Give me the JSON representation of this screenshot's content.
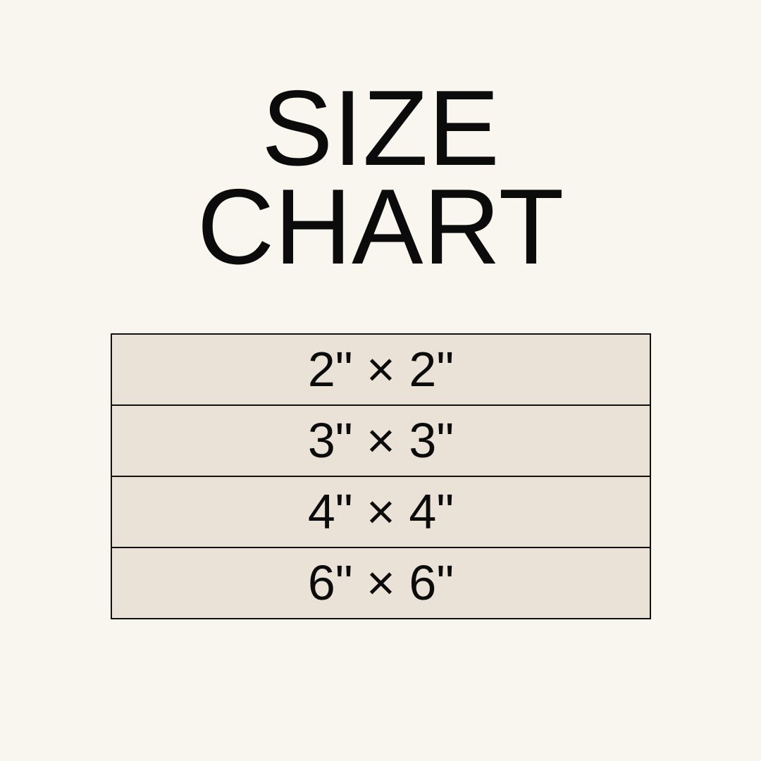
{
  "title": {
    "line1": "SIZE",
    "line2": "CHART"
  },
  "sizes": [
    "2\" × 2\"",
    "3\" × 3\"",
    "4\" × 4\"",
    "6\" × 6\""
  ],
  "colors": {
    "background": "#f9f6f0",
    "row_fill": "#ebe2d7",
    "border": "#111111",
    "text": "#0b0b0b"
  }
}
